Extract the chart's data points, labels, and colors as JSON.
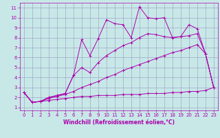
{
  "xlabel": "Windchill (Refroidissement éolien,°C)",
  "bg_color": "#c8e8e8",
  "grid_color": "#a0a8c8",
  "line_color": "#aa00aa",
  "xlim": [
    -0.5,
    23.5
  ],
  "ylim": [
    0.7,
    11.5
  ],
  "xticks": [
    0,
    1,
    2,
    3,
    4,
    5,
    6,
    7,
    8,
    9,
    10,
    11,
    12,
    13,
    14,
    15,
    16,
    17,
    18,
    19,
    20,
    21,
    22,
    23
  ],
  "yticks": [
    1,
    2,
    3,
    4,
    5,
    6,
    7,
    8,
    9,
    10,
    11
  ],
  "series1_x": [
    0,
    1,
    2,
    3,
    4,
    5,
    6,
    7,
    8,
    9,
    10,
    11,
    12,
    13,
    14,
    15,
    16,
    17,
    18,
    19,
    20,
    21,
    22,
    23
  ],
  "series1_y": [
    2.5,
    1.5,
    1.6,
    2.0,
    2.2,
    2.4,
    4.2,
    7.8,
    6.2,
    7.9,
    9.8,
    9.4,
    9.3,
    8.0,
    11.1,
    10.0,
    9.9,
    10.0,
    8.0,
    8.1,
    9.3,
    8.9,
    6.4,
    3.0
  ],
  "series2_x": [
    0,
    1,
    2,
    3,
    4,
    5,
    6,
    7,
    8,
    9,
    10,
    11,
    12,
    13,
    14,
    15,
    16,
    17,
    18,
    19,
    20,
    21,
    22,
    23
  ],
  "series2_y": [
    2.5,
    1.5,
    1.6,
    2.0,
    2.2,
    2.4,
    4.2,
    5.0,
    4.5,
    5.5,
    6.2,
    6.7,
    7.2,
    7.5,
    8.0,
    8.4,
    8.3,
    8.1,
    8.0,
    8.1,
    8.2,
    8.4,
    6.4,
    3.0
  ],
  "series3_x": [
    0,
    1,
    2,
    3,
    4,
    5,
    6,
    7,
    8,
    9,
    10,
    11,
    12,
    13,
    14,
    15,
    16,
    17,
    18,
    19,
    20,
    21,
    22,
    23
  ],
  "series3_y": [
    2.5,
    1.5,
    1.6,
    1.9,
    2.1,
    2.3,
    2.6,
    3.0,
    3.3,
    3.6,
    4.0,
    4.3,
    4.7,
    5.0,
    5.3,
    5.6,
    5.9,
    6.2,
    6.5,
    6.7,
    7.0,
    7.3,
    6.4,
    3.0
  ],
  "series4_x": [
    0,
    1,
    2,
    3,
    4,
    5,
    6,
    7,
    8,
    9,
    10,
    11,
    12,
    13,
    14,
    15,
    16,
    17,
    18,
    19,
    20,
    21,
    22,
    23
  ],
  "series4_y": [
    2.5,
    1.5,
    1.6,
    1.7,
    1.8,
    1.9,
    2.0,
    2.1,
    2.1,
    2.2,
    2.2,
    2.2,
    2.3,
    2.3,
    2.3,
    2.4,
    2.4,
    2.4,
    2.5,
    2.5,
    2.6,
    2.6,
    2.7,
    3.0
  ],
  "markersize": 2.5,
  "linewidth": 0.7,
  "tick_labelsize": 5,
  "xlabel_fontsize": 5.5
}
